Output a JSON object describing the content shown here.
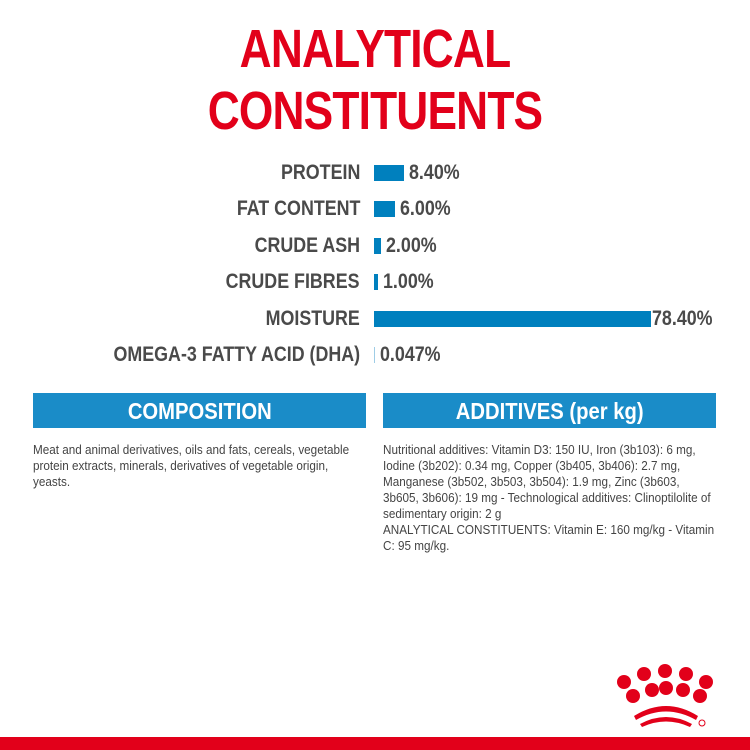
{
  "title": "ANALYTICAL CONSTITUENTS",
  "chart_data": {
    "type": "bar",
    "orientation": "horizontal",
    "categories": [
      "PROTEIN",
      "FAT CONTENT",
      "CRUDE ASH",
      "CRUDE FIBRES",
      "MOISTURE",
      "OMEGA-3 FATTY ACID (DHA)"
    ],
    "values": [
      8.4,
      6.0,
      2.0,
      1.0,
      78.4,
      0.047
    ],
    "value_labels": [
      "8.40%",
      "6.00%",
      "2.00%",
      "1.00%",
      "78.40%",
      "0.047%"
    ],
    "unit": "%",
    "grid": false,
    "bar_color": "#0080be"
  },
  "composition": {
    "heading": "COMPOSITION",
    "text": "Meat and animal derivatives, oils and fats, cereals, vegetable protein extracts, minerals, derivatives of vegetable origin, yeasts."
  },
  "additives": {
    "heading": "ADDITIVES (per kg)",
    "text": "Nutritional additives: Vitamin D3: 150 IU, Iron (3b103): 6 mg, Iodine (3b202): 0.34 mg, Copper (3b405, 3b406): 2.7 mg, Manganese (3b502, 3b503, 3b504): 1.9 mg, Zinc (3b603, 3b605, 3b606): 19 mg - Technological additives: Clinoptilolite of sedimentary origin: 2 g",
    "text2": "ANALYTICAL CONSTITUENTS: Vitamin E: 160 mg/kg - Vitamin C: 95 mg/kg."
  },
  "colors": {
    "brand_red": "#e2001a",
    "accent_blue": "#1a8cc8"
  },
  "logo": {
    "icon": "crown-icon"
  }
}
